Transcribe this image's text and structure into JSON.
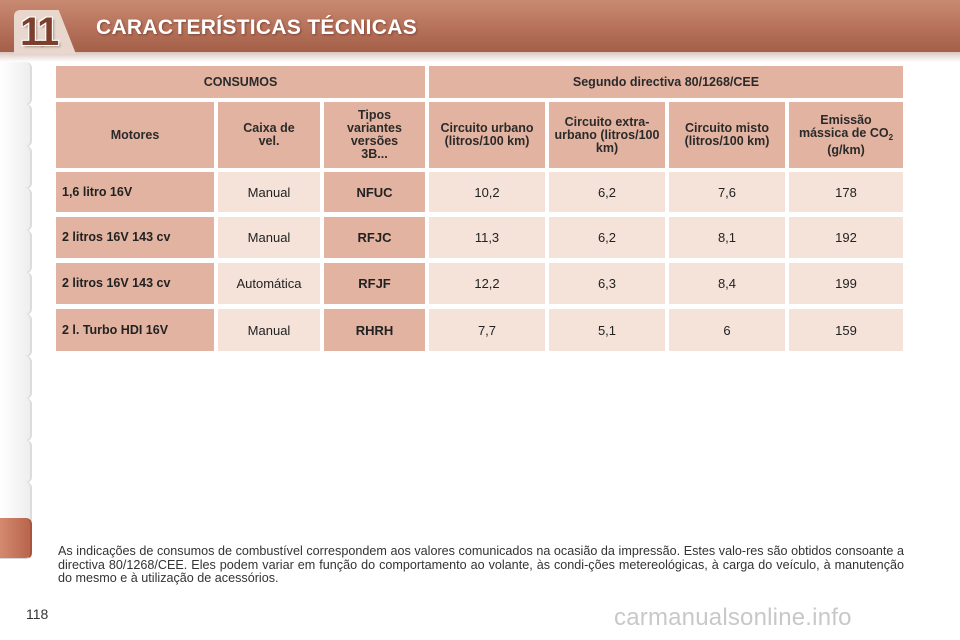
{
  "header": {
    "chapter_number": "11",
    "title": "CARACTERÍSTICAS TÉCNICAS"
  },
  "table": {
    "group_headers": [
      "CONSUMOS",
      "Segundo directiva 80/1268/CEE"
    ],
    "column_headers": [
      "Motores",
      "Caixa de vel.",
      "Tipos variantes versões 3B...",
      "Circuito urbano (litros/100 km)",
      "Circuito extra-urbano (litros/100 km)",
      "Circuito misto (litros/100 km)",
      "Emissão mássica de CO2 (g/km)"
    ],
    "rows": [
      {
        "motor": "1,6 litro 16V",
        "caixa": "Manual",
        "tipo": "NFUC",
        "urbano": "10,2",
        "extra": "6,2",
        "misto": "7,6",
        "co2": "178"
      },
      {
        "motor": "2 litros 16V 143 cv",
        "caixa": "Manual",
        "tipo": "RFJC",
        "urbano": "11,3",
        "extra": "6,2",
        "misto": "8,1",
        "co2": "192"
      },
      {
        "motor": "2 litros 16V 143 cv",
        "caixa": "Automática",
        "tipo": "RFJF",
        "urbano": "12,2",
        "extra": "6,3",
        "misto": "8,4",
        "co2": "199"
      },
      {
        "motor": "2 l. Turbo HDI 16V",
        "caixa": "Manual",
        "tipo": "RHRH",
        "urbano": "7,7",
        "extra": "5,1",
        "misto": "6",
        "co2": "159"
      }
    ]
  },
  "note": "As indicações de consumos de combustível correspondem aos valores comunicados na ocasião da impressão. Estes valo-res são obtidos consoante a directiva 80/1268/CEE. Eles podem variar em função do comportamento ao volante, às condi-ções metereológicas, à carga do veículo, à manutenção do mesmo e à utilização de acessórios.",
  "page_number": "118",
  "watermark": "carmanualsonline.info"
}
